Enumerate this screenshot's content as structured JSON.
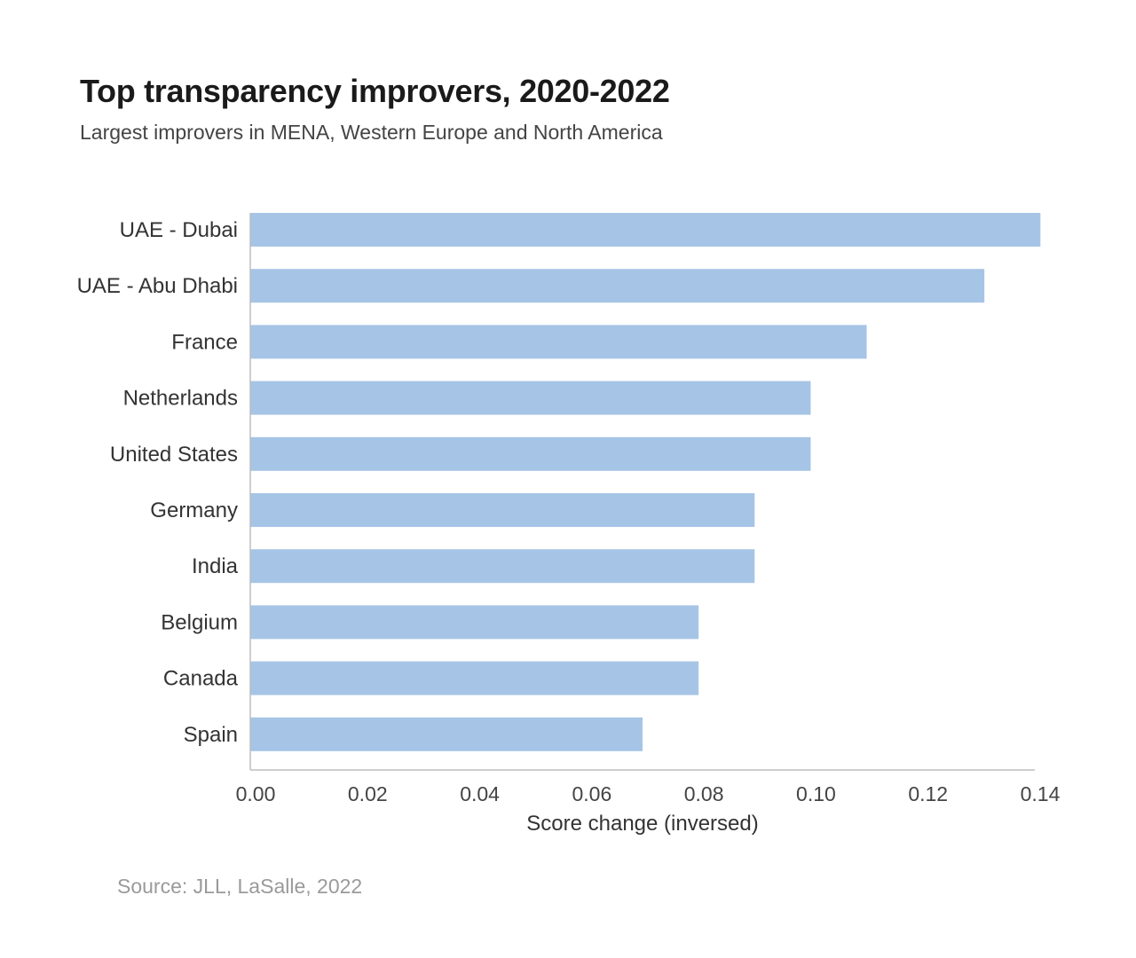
{
  "chart_data": {
    "type": "bar",
    "orientation": "horizontal",
    "title": "Top transparency improvers, 2020-2022",
    "subtitle": "Largest improvers in MENA, Western Europe and North America",
    "categories": [
      "UAE - Dubai",
      "UAE - Abu Dhabi",
      "France",
      "Netherlands",
      "United States",
      "Germany",
      "India",
      "Belgium",
      "Canada",
      "Spain"
    ],
    "values": [
      0.141,
      0.131,
      0.11,
      0.1,
      0.1,
      0.09,
      0.09,
      0.08,
      0.08,
      0.07
    ],
    "xlabel": "Score change (inversed)",
    "ylabel": "",
    "xlim": [
      0,
      0.14
    ],
    "xticks": [
      "0.00",
      "0.02",
      "0.04",
      "0.06",
      "0.08",
      "0.10",
      "0.12",
      "0.14"
    ],
    "bar_color": "#a6c4e6",
    "grid": false,
    "source": "Source: JLL, LaSalle, 2022"
  }
}
